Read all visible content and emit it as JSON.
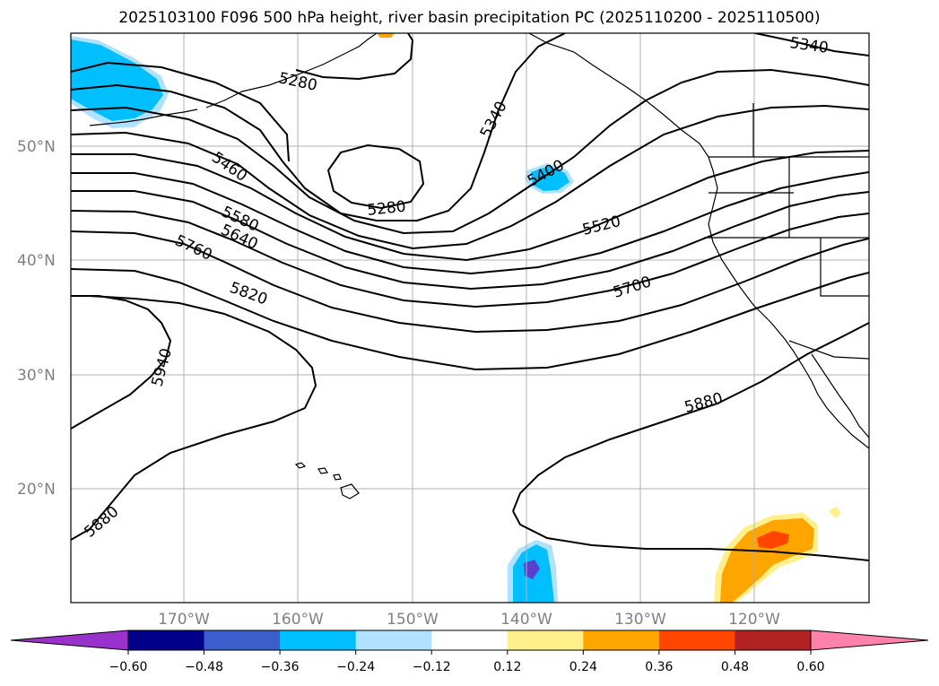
{
  "title": "2025103100 F096 500 hPa height, river basin precipitation PC (2025110200 - 2025110500)",
  "lat_labels": [
    "50°N",
    "40°N",
    "30°N",
    "20°N"
  ],
  "lon_labels": [
    "170°W",
    "160°W",
    "150°W",
    "140°W",
    "130°W",
    "120°W"
  ],
  "contour_labels": [
    "5280",
    "5340",
    "5340",
    "5280",
    "5400",
    "5460",
    "5520",
    "5580",
    "5640",
    "5700",
    "5760",
    "5820",
    "5880",
    "5880",
    "5940"
  ],
  "colorbar": {
    "ticks": [
      "−0.60",
      "−0.48",
      "−0.36",
      "−0.24",
      "−0.12",
      "0.12",
      "0.24",
      "0.36",
      "0.48",
      "0.60"
    ],
    "colors": [
      "#9932cc",
      "#00008b",
      "#3a5fcd",
      "#00bfff",
      "#b0e2ff",
      "#ffffff",
      "#fff08b",
      "#ffa500",
      "#ff4500",
      "#b22222",
      "#ff82ab"
    ]
  },
  "colors": {
    "contour": "#000000",
    "coast": "#000000",
    "grid": "#b0b0b0",
    "tick_label": "#808080",
    "blue_fill": "#00bfff",
    "light_blue_fill": "#b0e2ff",
    "orange_fill": "#ffa500",
    "red_fill": "#ff4500",
    "yellow_fill": "#fff08b",
    "purple_fill": "#5a3fd0"
  }
}
